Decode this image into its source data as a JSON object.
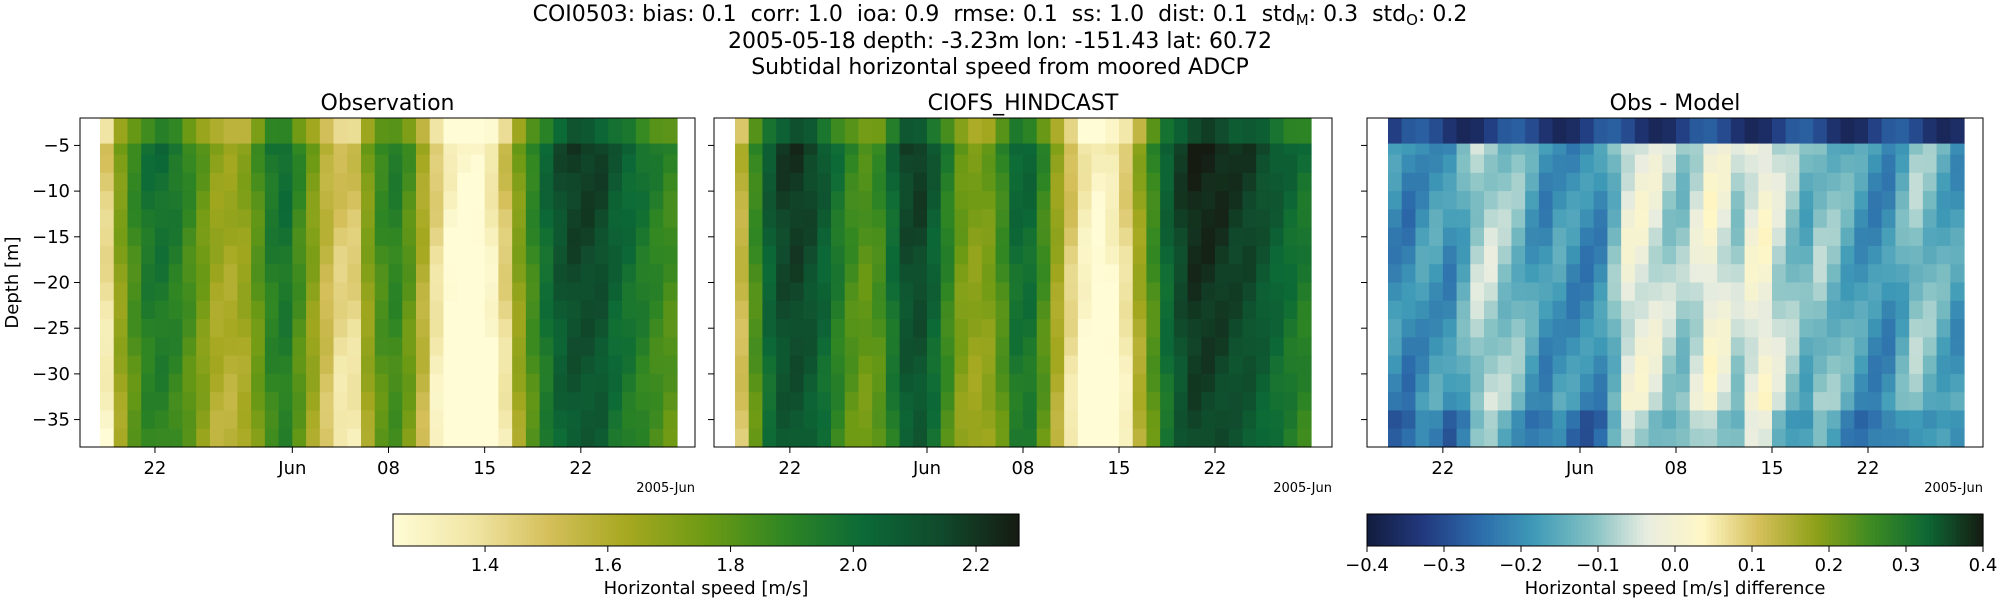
{
  "figure": {
    "stats": {
      "station": "COI0503",
      "bias": "0.1",
      "corr": "1.0",
      "ioa": "0.9",
      "rmse": "0.1",
      "ss": "1.0",
      "dist": "0.1",
      "std_m": "0.3",
      "std_o": "0.2"
    },
    "title_line2": "2005-05-18 depth: -3.23m lon: -151.43 lat: 60.72",
    "title_line3": "Subtidal horizontal speed from moored ADCP"
  },
  "chart_data": [
    {
      "type": "heatmap",
      "title": "Observation",
      "ylabel": "Depth [m]",
      "x_tick_labels": [
        "22",
        "Jun",
        "08",
        "15",
        "22"
      ],
      "x_tick_dates": [
        "2005-05-22",
        "2005-06-01",
        "2005-06-08",
        "2005-06-15",
        "2005-06-22"
      ],
      "x_offset_label": "2005-Jun",
      "x_range": [
        "2005-05-18",
        "2005-06-29"
      ],
      "ylim": [
        -38,
        -2
      ],
      "y_ticks": [
        -5,
        -10,
        -15,
        -20,
        -25,
        -30,
        -35
      ],
      "depth_bins": [
        -3.23,
        -5,
        -7,
        -9,
        -11,
        -13,
        -15,
        -17,
        -19,
        -21,
        -23,
        -25,
        -27,
        -29,
        -31,
        -33,
        -35,
        -37
      ],
      "time_profile": [
        1.5,
        1.75,
        1.9,
        2.0,
        2.02,
        1.98,
        1.9,
        1.8,
        1.7,
        1.68,
        1.72,
        1.85,
        1.98,
        2.02,
        1.9,
        1.75,
        1.6,
        1.55,
        1.55,
        1.75,
        1.9,
        1.95,
        1.85,
        1.65,
        1.5,
        1.35,
        1.28,
        1.3,
        1.4,
        1.55,
        1.75,
        1.92,
        2.05,
        2.15,
        2.2,
        2.2,
        2.18,
        2.1,
        2.05,
        2.0,
        1.95,
        1.9
      ],
      "colormap": "speed",
      "vmin": 1.25,
      "vmax": 2.27
    },
    {
      "type": "heatmap",
      "title": "CIOFS_HINDCAST",
      "x_tick_labels": [
        "22",
        "Jun",
        "08",
        "15",
        "22"
      ],
      "x_tick_dates": [
        "2005-05-22",
        "2005-06-01",
        "2005-06-08",
        "2005-06-15",
        "2005-06-22"
      ],
      "x_offset_label": "2005-Jun",
      "x_range": [
        "2005-05-18",
        "2005-06-29"
      ],
      "ylim": [
        -38,
        -2
      ],
      "depth_bins": [
        -3.23,
        -5,
        -7,
        -9,
        -11,
        -13,
        -15,
        -17,
        -19,
        -21,
        -23,
        -25,
        -27,
        -29,
        -31,
        -33,
        -35,
        -37
      ],
      "time_profile": [
        1.6,
        1.9,
        2.1,
        2.2,
        2.22,
        2.18,
        2.1,
        2.0,
        1.9,
        1.85,
        1.9,
        2.05,
        2.18,
        2.2,
        2.1,
        1.95,
        1.8,
        1.75,
        1.78,
        1.9,
        2.05,
        2.05,
        1.9,
        1.7,
        1.55,
        1.4,
        1.33,
        1.38,
        1.5,
        1.7,
        1.9,
        2.08,
        2.2,
        2.27,
        2.27,
        2.25,
        2.22,
        2.2,
        2.15,
        2.1,
        2.05,
        2.0
      ],
      "colormap": "speed",
      "vmin": 1.25,
      "vmax": 2.27
    },
    {
      "type": "heatmap",
      "title": "Obs - Model",
      "x_tick_labels": [
        "22",
        "Jun",
        "08",
        "15",
        "22"
      ],
      "x_tick_dates": [
        "2005-05-22",
        "2005-06-01",
        "2005-06-08",
        "2005-06-15",
        "2005-06-22"
      ],
      "x_offset_label": "2005-Jun",
      "x_range": [
        "2005-05-18",
        "2005-06-29"
      ],
      "ylim": [
        -38,
        -2
      ],
      "depth_bins": [
        -3.23,
        -5,
        -7,
        -9,
        -11,
        -13,
        -15,
        -17,
        -19,
        -21,
        -23,
        -25,
        -27,
        -29,
        -31,
        -33,
        -35,
        -37
      ],
      "time_profile": [
        -0.2,
        -0.22,
        -0.19,
        -0.18,
        -0.2,
        -0.15,
        -0.08,
        -0.07,
        -0.1,
        -0.12,
        -0.17,
        -0.2,
        -0.18,
        -0.2,
        -0.21,
        -0.2,
        -0.12,
        -0.03,
        -0.02,
        -0.04,
        -0.08,
        -0.1,
        -0.05,
        0.0,
        -0.03,
        -0.08,
        -0.02,
        0.0,
        -0.06,
        -0.1,
        -0.14,
        -0.1,
        -0.12,
        -0.15,
        -0.18,
        -0.2,
        -0.2,
        -0.15,
        -0.1,
        -0.12,
        -0.15,
        -0.18
      ],
      "surface_offset": -0.2,
      "colormap": "diff",
      "vmin": -0.4,
      "vmax": 0.4
    }
  ],
  "colorbars": {
    "speed": {
      "label": "Horizontal speed [m/s]",
      "ticks": [
        1.4,
        1.6,
        1.8,
        2.0,
        2.2
      ],
      "tick_labels": [
        "1.4",
        "1.6",
        "1.8",
        "2.0",
        "2.2"
      ],
      "range": [
        1.25,
        2.27
      ]
    },
    "diff": {
      "label": "Horizontal speed [m/s] difference",
      "ticks": [
        -0.4,
        -0.3,
        -0.2,
        -0.1,
        0.0,
        0.1,
        0.2,
        0.3,
        0.4
      ],
      "tick_labels": [
        "−0.4",
        "−0.3",
        "−0.2",
        "−0.1",
        "0.0",
        "0.1",
        "0.2",
        "0.3",
        "0.4"
      ],
      "range": [
        -0.4,
        0.4
      ]
    }
  },
  "colors": {
    "speed_stops": [
      "#fffcd6",
      "#f1e6a6",
      "#d4bf5a",
      "#a5a820",
      "#6d9a14",
      "#2f8623",
      "#0c6a37",
      "#104a2c",
      "#161b12"
    ],
    "diff_stops": [
      "#121c3e",
      "#22397e",
      "#2c6bab",
      "#3f9bb7",
      "#82c0c3",
      "#e9ede0",
      "#fff7c6",
      "#d4bf5a",
      "#8fa119",
      "#3e8b22",
      "#0d6834",
      "#161b12"
    ]
  }
}
